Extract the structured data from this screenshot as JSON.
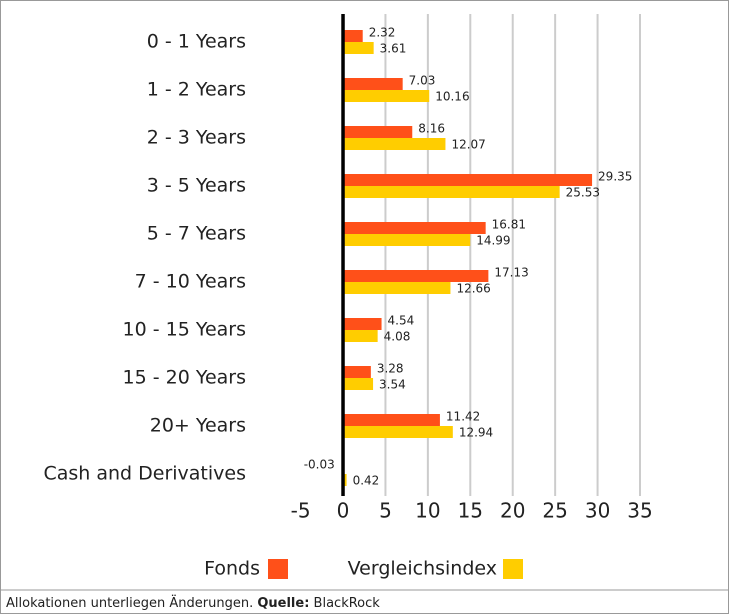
{
  "chart_data": {
    "type": "hbar",
    "categories": [
      "0 - 1 Years",
      "1 - 2 Years",
      "2 - 3 Years",
      "3 - 5 Years",
      "5 - 7 Years",
      "7 - 10 Years",
      "10 - 15 Years",
      "15 - 20 Years",
      "20+ Years",
      "Cash and Derivatives"
    ],
    "series": [
      {
        "name": "Fonds",
        "color": "#ff5019",
        "values": [
          2.32,
          7.03,
          8.16,
          29.35,
          16.81,
          17.13,
          4.54,
          3.28,
          11.42,
          -0.03
        ]
      },
      {
        "name": "Vergleichsindex",
        "color": "#ffcd00",
        "values": [
          3.61,
          10.16,
          12.07,
          25.53,
          14.99,
          12.66,
          4.08,
          3.54,
          12.94,
          0.42
        ]
      }
    ],
    "xlim": [
      -5,
      35
    ],
    "xticks": [
      -5,
      0,
      5,
      10,
      15,
      20,
      25,
      30,
      35
    ],
    "grid": true,
    "legend": "bottom",
    "note": "Allokationen unterliegen Änderungen.",
    "source_label": "Quelle:",
    "source": "BlackRock"
  }
}
